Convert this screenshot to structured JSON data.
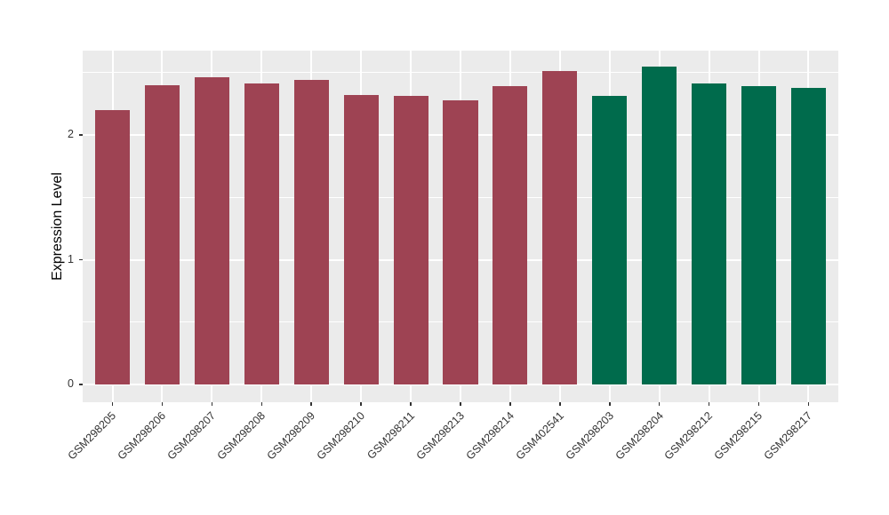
{
  "chart_data": {
    "type": "bar",
    "title": "",
    "xlabel": "",
    "ylabel": "Expression Level",
    "categories": [
      "GSM298205",
      "GSM298206",
      "GSM298207",
      "GSM298208",
      "GSM298209",
      "GSM298210",
      "GSM298211",
      "GSM298213",
      "GSM298214",
      "GSM402541",
      "GSM298203",
      "GSM298204",
      "GSM298212",
      "GSM298215",
      "GSM298217"
    ],
    "values": [
      2.2,
      2.4,
      2.46,
      2.41,
      2.44,
      2.32,
      2.31,
      2.28,
      2.39,
      2.51,
      2.31,
      2.55,
      2.41,
      2.39,
      2.38
    ],
    "group_of": [
      0,
      0,
      0,
      0,
      0,
      0,
      0,
      0,
      0,
      0,
      1,
      1,
      1,
      1,
      1
    ],
    "group_colors": [
      "#9E4353",
      "#006B4C"
    ],
    "yticks": [
      0,
      1,
      2
    ],
    "ytick_labels": [
      "0",
      "1",
      "2"
    ],
    "yticks_minor": [
      0.5,
      1.5,
      2.5
    ],
    "ylim": [
      0,
      2.68
    ],
    "grid": "on",
    "legend": "none",
    "panel_background": "#EBEBEB",
    "gridline_color": "#FFFFFF",
    "axis_text_color": "#333333",
    "axis_title_color": "#000000"
  }
}
